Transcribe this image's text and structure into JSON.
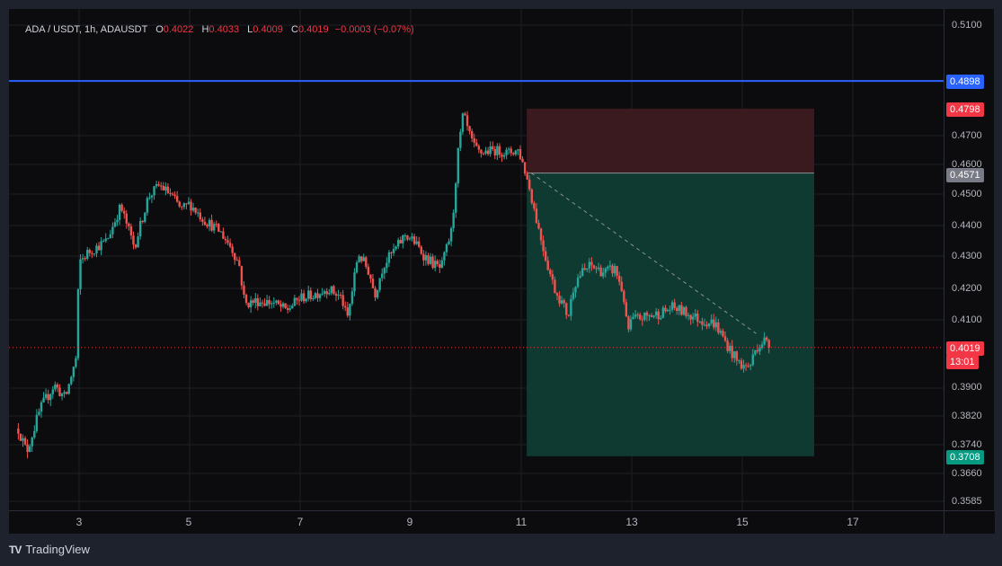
{
  "legend": {
    "symbol": "ADA / USDT, 1h, ADAUSDT",
    "o_label": "O",
    "o_value": "0.4022",
    "h_label": "H",
    "h_value": "0.4033",
    "l_label": "L",
    "l_value": "0.4009",
    "c_label": "C",
    "c_value": "0.4019",
    "change": "−0.0003 (−0.07%)"
  },
  "price_axis": {
    "ticks": [
      "0.5100",
      "0.4700",
      "0.4600",
      "0.4500",
      "0.4400",
      "0.4300",
      "0.4200",
      "0.4100",
      "0.3900",
      "0.3820",
      "0.3740",
      "0.3660",
      "0.3585"
    ],
    "badges": {
      "level_line": "0.4898",
      "stop": "0.4798",
      "entry": "0.4571",
      "last": "0.4019",
      "countdown": "13:01",
      "target": "0.3708"
    }
  },
  "time_axis": {
    "ticks": [
      "3",
      "5",
      "7",
      "9",
      "11",
      "13",
      "15",
      "17"
    ]
  },
  "brand": {
    "logo": "TV",
    "name": "TradingView"
  },
  "colors": {
    "up": "#26a69a",
    "down": "#ef5350",
    "level": "#2962ff",
    "stop_zone": "#3a1a1e",
    "target_zone": "#0f3a32"
  },
  "chart_data": {
    "type": "candlestick",
    "symbol": "ADA / USDT",
    "interval": "1h",
    "x_range_days": [
      1.9,
      18.8
    ],
    "y_range": [
      0.3585,
      0.51
    ],
    "grid": true,
    "horizontal_level": 0.4898,
    "last_price": 0.4019,
    "short_position": {
      "entry": 0.4571,
      "stop": 0.4798,
      "target": 0.3708,
      "start_day": 11.1,
      "end_day": 16.3
    },
    "price_path": [
      [
        1.9,
        0.3785
      ],
      [
        2.05,
        0.372
      ],
      [
        2.3,
        0.384
      ],
      [
        2.55,
        0.391
      ],
      [
        2.75,
        0.387
      ],
      [
        2.95,
        0.399
      ],
      [
        3.0,
        0.428
      ],
      [
        3.15,
        0.431
      ],
      [
        3.5,
        0.435
      ],
      [
        3.75,
        0.446
      ],
      [
        3.85,
        0.441
      ],
      [
        4.0,
        0.433
      ],
      [
        4.25,
        0.449
      ],
      [
        4.45,
        0.453
      ],
      [
        4.65,
        0.45
      ],
      [
        4.85,
        0.445
      ],
      [
        5.0,
        0.447
      ],
      [
        5.25,
        0.442
      ],
      [
        5.55,
        0.438
      ],
      [
        5.75,
        0.433
      ],
      [
        5.9,
        0.427
      ],
      [
        6.0,
        0.415
      ],
      [
        6.2,
        0.416
      ],
      [
        6.5,
        0.4155
      ],
      [
        6.75,
        0.413
      ],
      [
        7.0,
        0.417
      ],
      [
        7.25,
        0.418
      ],
      [
        7.5,
        0.42
      ],
      [
        7.75,
        0.417
      ],
      [
        7.85,
        0.41
      ],
      [
        7.95,
        0.42
      ],
      [
        8.05,
        0.431
      ],
      [
        8.25,
        0.425
      ],
      [
        8.35,
        0.418
      ],
      [
        8.5,
        0.427
      ],
      [
        8.75,
        0.433
      ],
      [
        8.9,
        0.437
      ],
      [
        9.05,
        0.435
      ],
      [
        9.25,
        0.43
      ],
      [
        9.45,
        0.427
      ],
      [
        9.55,
        0.426
      ],
      [
        9.75,
        0.439
      ],
      [
        9.85,
        0.463
      ],
      [
        9.95,
        0.478
      ],
      [
        10.05,
        0.471
      ],
      [
        10.15,
        0.466
      ],
      [
        10.25,
        0.464
      ],
      [
        10.5,
        0.465
      ],
      [
        10.75,
        0.464
      ],
      [
        10.95,
        0.465
      ],
      [
        11.05,
        0.459
      ],
      [
        11.15,
        0.452
      ],
      [
        11.3,
        0.44
      ],
      [
        11.45,
        0.429
      ],
      [
        11.6,
        0.42
      ],
      [
        11.75,
        0.415
      ],
      [
        11.85,
        0.411
      ],
      [
        11.95,
        0.421
      ],
      [
        12.05,
        0.424
      ],
      [
        12.25,
        0.427
      ],
      [
        12.5,
        0.425
      ],
      [
        12.7,
        0.426
      ],
      [
        12.85,
        0.418
      ],
      [
        12.92,
        0.406
      ],
      [
        13.0,
        0.41
      ],
      [
        13.25,
        0.411
      ],
      [
        13.5,
        0.412
      ],
      [
        13.75,
        0.414
      ],
      [
        14.0,
        0.412
      ],
      [
        14.25,
        0.41
      ],
      [
        14.5,
        0.409
      ],
      [
        14.75,
        0.402
      ],
      [
        14.9,
        0.398
      ],
      [
        15.05,
        0.396
      ],
      [
        15.15,
        0.397
      ],
      [
        15.25,
        0.402
      ],
      [
        15.4,
        0.404
      ],
      [
        15.5,
        0.4019
      ]
    ]
  }
}
